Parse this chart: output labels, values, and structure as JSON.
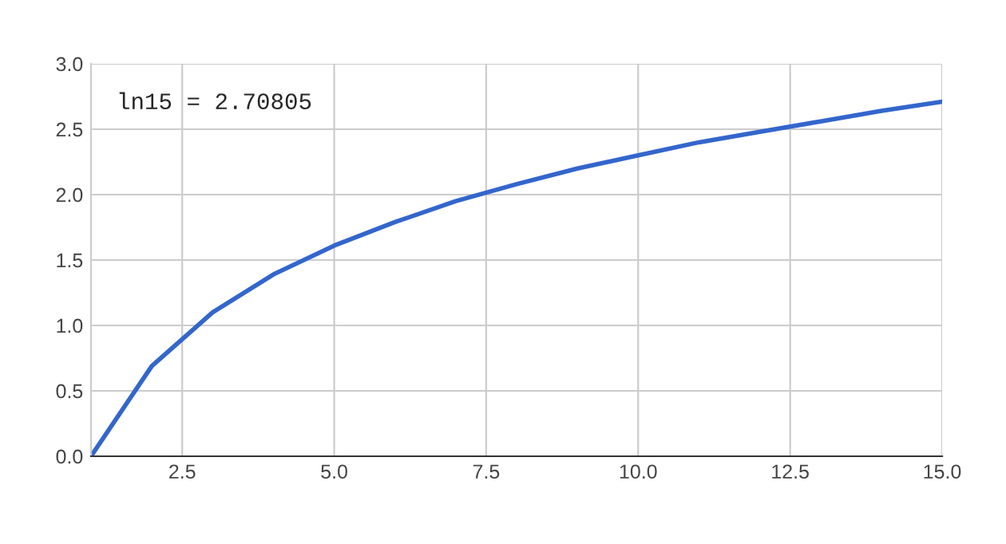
{
  "chart_data": {
    "type": "line",
    "x": [
      1,
      2,
      3,
      4,
      5,
      6,
      7,
      8,
      9,
      10,
      11,
      12,
      13,
      14,
      15
    ],
    "series": [
      {
        "color": "#3366cc",
        "values": [
          0,
          0.69,
          1.1,
          1.39,
          1.61,
          1.79,
          1.95,
          2.08,
          2.2,
          2.3,
          2.4,
          2.48,
          2.56,
          2.64,
          2.71
        ]
      }
    ],
    "xlim": [
      1,
      15
    ],
    "xticks": [
      {
        "value": 2.5,
        "label": "2.5"
      },
      {
        "value": 5,
        "label": "5.0"
      },
      {
        "value": 7.5,
        "label": "7.5"
      },
      {
        "value": 10,
        "label": "10.0"
      },
      {
        "value": 12.5,
        "label": "12.5"
      },
      {
        "value": 15,
        "label": "15.0"
      }
    ],
    "ylim": [
      0,
      3
    ],
    "yticks": [
      {
        "value": 0,
        "label": "0.0"
      },
      {
        "value": 0.5,
        "label": "0.5"
      },
      {
        "value": 1,
        "label": "1.0"
      },
      {
        "value": 1.5,
        "label": "1.5"
      },
      {
        "value": 2,
        "label": "2.0"
      },
      {
        "value": 2.5,
        "label": "2.5"
      },
      {
        "value": 3,
        "label": "3.0"
      }
    ],
    "grid": true,
    "line_style": "solid",
    "marker": "none",
    "annotations": [
      "ln15 = 2.70805"
    ]
  }
}
